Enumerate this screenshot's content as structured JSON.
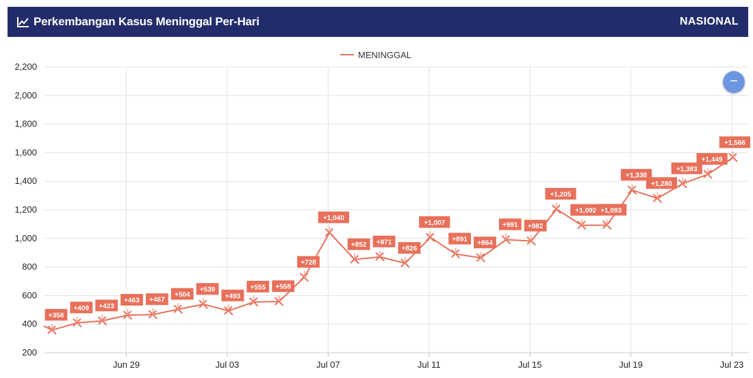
{
  "header": {
    "title": "Perkembangan Kasus Meninggal Per-Hari",
    "scope": "NASIONAL",
    "icon": "line-chart-icon"
  },
  "zoom_button": {
    "label": "−",
    "icon": "zoom-out-icon"
  },
  "chart_data": {
    "type": "line",
    "title": "",
    "xlabel": "",
    "ylabel": "",
    "ylim": [
      200,
      2200
    ],
    "yticks": [
      200,
      400,
      600,
      800,
      1000,
      1200,
      1400,
      1600,
      1800,
      2000,
      2200
    ],
    "ytick_labels": [
      "200",
      "400",
      "600",
      "800",
      "1,000",
      "1,200",
      "1,400",
      "1,600",
      "1,800",
      "2,000",
      "2,200"
    ],
    "xticks": [
      {
        "label": "Jun 29",
        "x": "Jun 29"
      },
      {
        "label": "Jul 03",
        "x": "Jul 03"
      },
      {
        "label": "Jul 07",
        "x": "Jul 07"
      },
      {
        "label": "Jul 11",
        "x": "Jul 11"
      },
      {
        "label": "Jul 15",
        "x": "Jul 15"
      },
      {
        "label": "Jul 19",
        "x": "Jul 19"
      },
      {
        "label": "Jul 23",
        "x": "Jul 23"
      }
    ],
    "grid": true,
    "legend_position": "top-center",
    "color": "#e8705a",
    "x": [
      "Jun 26",
      "Jun 27",
      "Jun 28",
      "Jun 29",
      "Jun 30",
      "Jul 01",
      "Jul 02",
      "Jul 03",
      "Jul 04",
      "Jul 05",
      "Jul 06",
      "Jul 07",
      "Jul 08",
      "Jul 09",
      "Jul 10",
      "Jul 11",
      "Jul 12",
      "Jul 13",
      "Jul 14",
      "Jul 15",
      "Jul 16",
      "Jul 17",
      "Jul 18",
      "Jul 19",
      "Jul 20",
      "Jul 21",
      "Jul 22",
      "Jul 23"
    ],
    "series": [
      {
        "name": "MENINGGAL",
        "values": [
          358,
          409,
          423,
          463,
          467,
          504,
          539,
          493,
          555,
          558,
          728,
          1040,
          852,
          871,
          826,
          1007,
          891,
          864,
          991,
          982,
          1205,
          1092,
          1093,
          1338,
          1280,
          1383,
          1449,
          1566
        ],
        "labels": [
          "+358",
          "+409",
          "+423",
          "+463",
          "+467",
          "+504",
          "+539",
          "+493",
          "+555",
          "+558",
          "+728",
          "+1,040",
          "+852",
          "+871",
          "+826",
          "+1,007",
          "+891",
          "+864",
          "+991",
          "+982",
          "+1,205",
          "+1,092",
          "+1,093",
          "+1,338",
          "+1,280",
          "+1,383",
          "+1,449",
          "+1,566"
        ]
      }
    ]
  }
}
